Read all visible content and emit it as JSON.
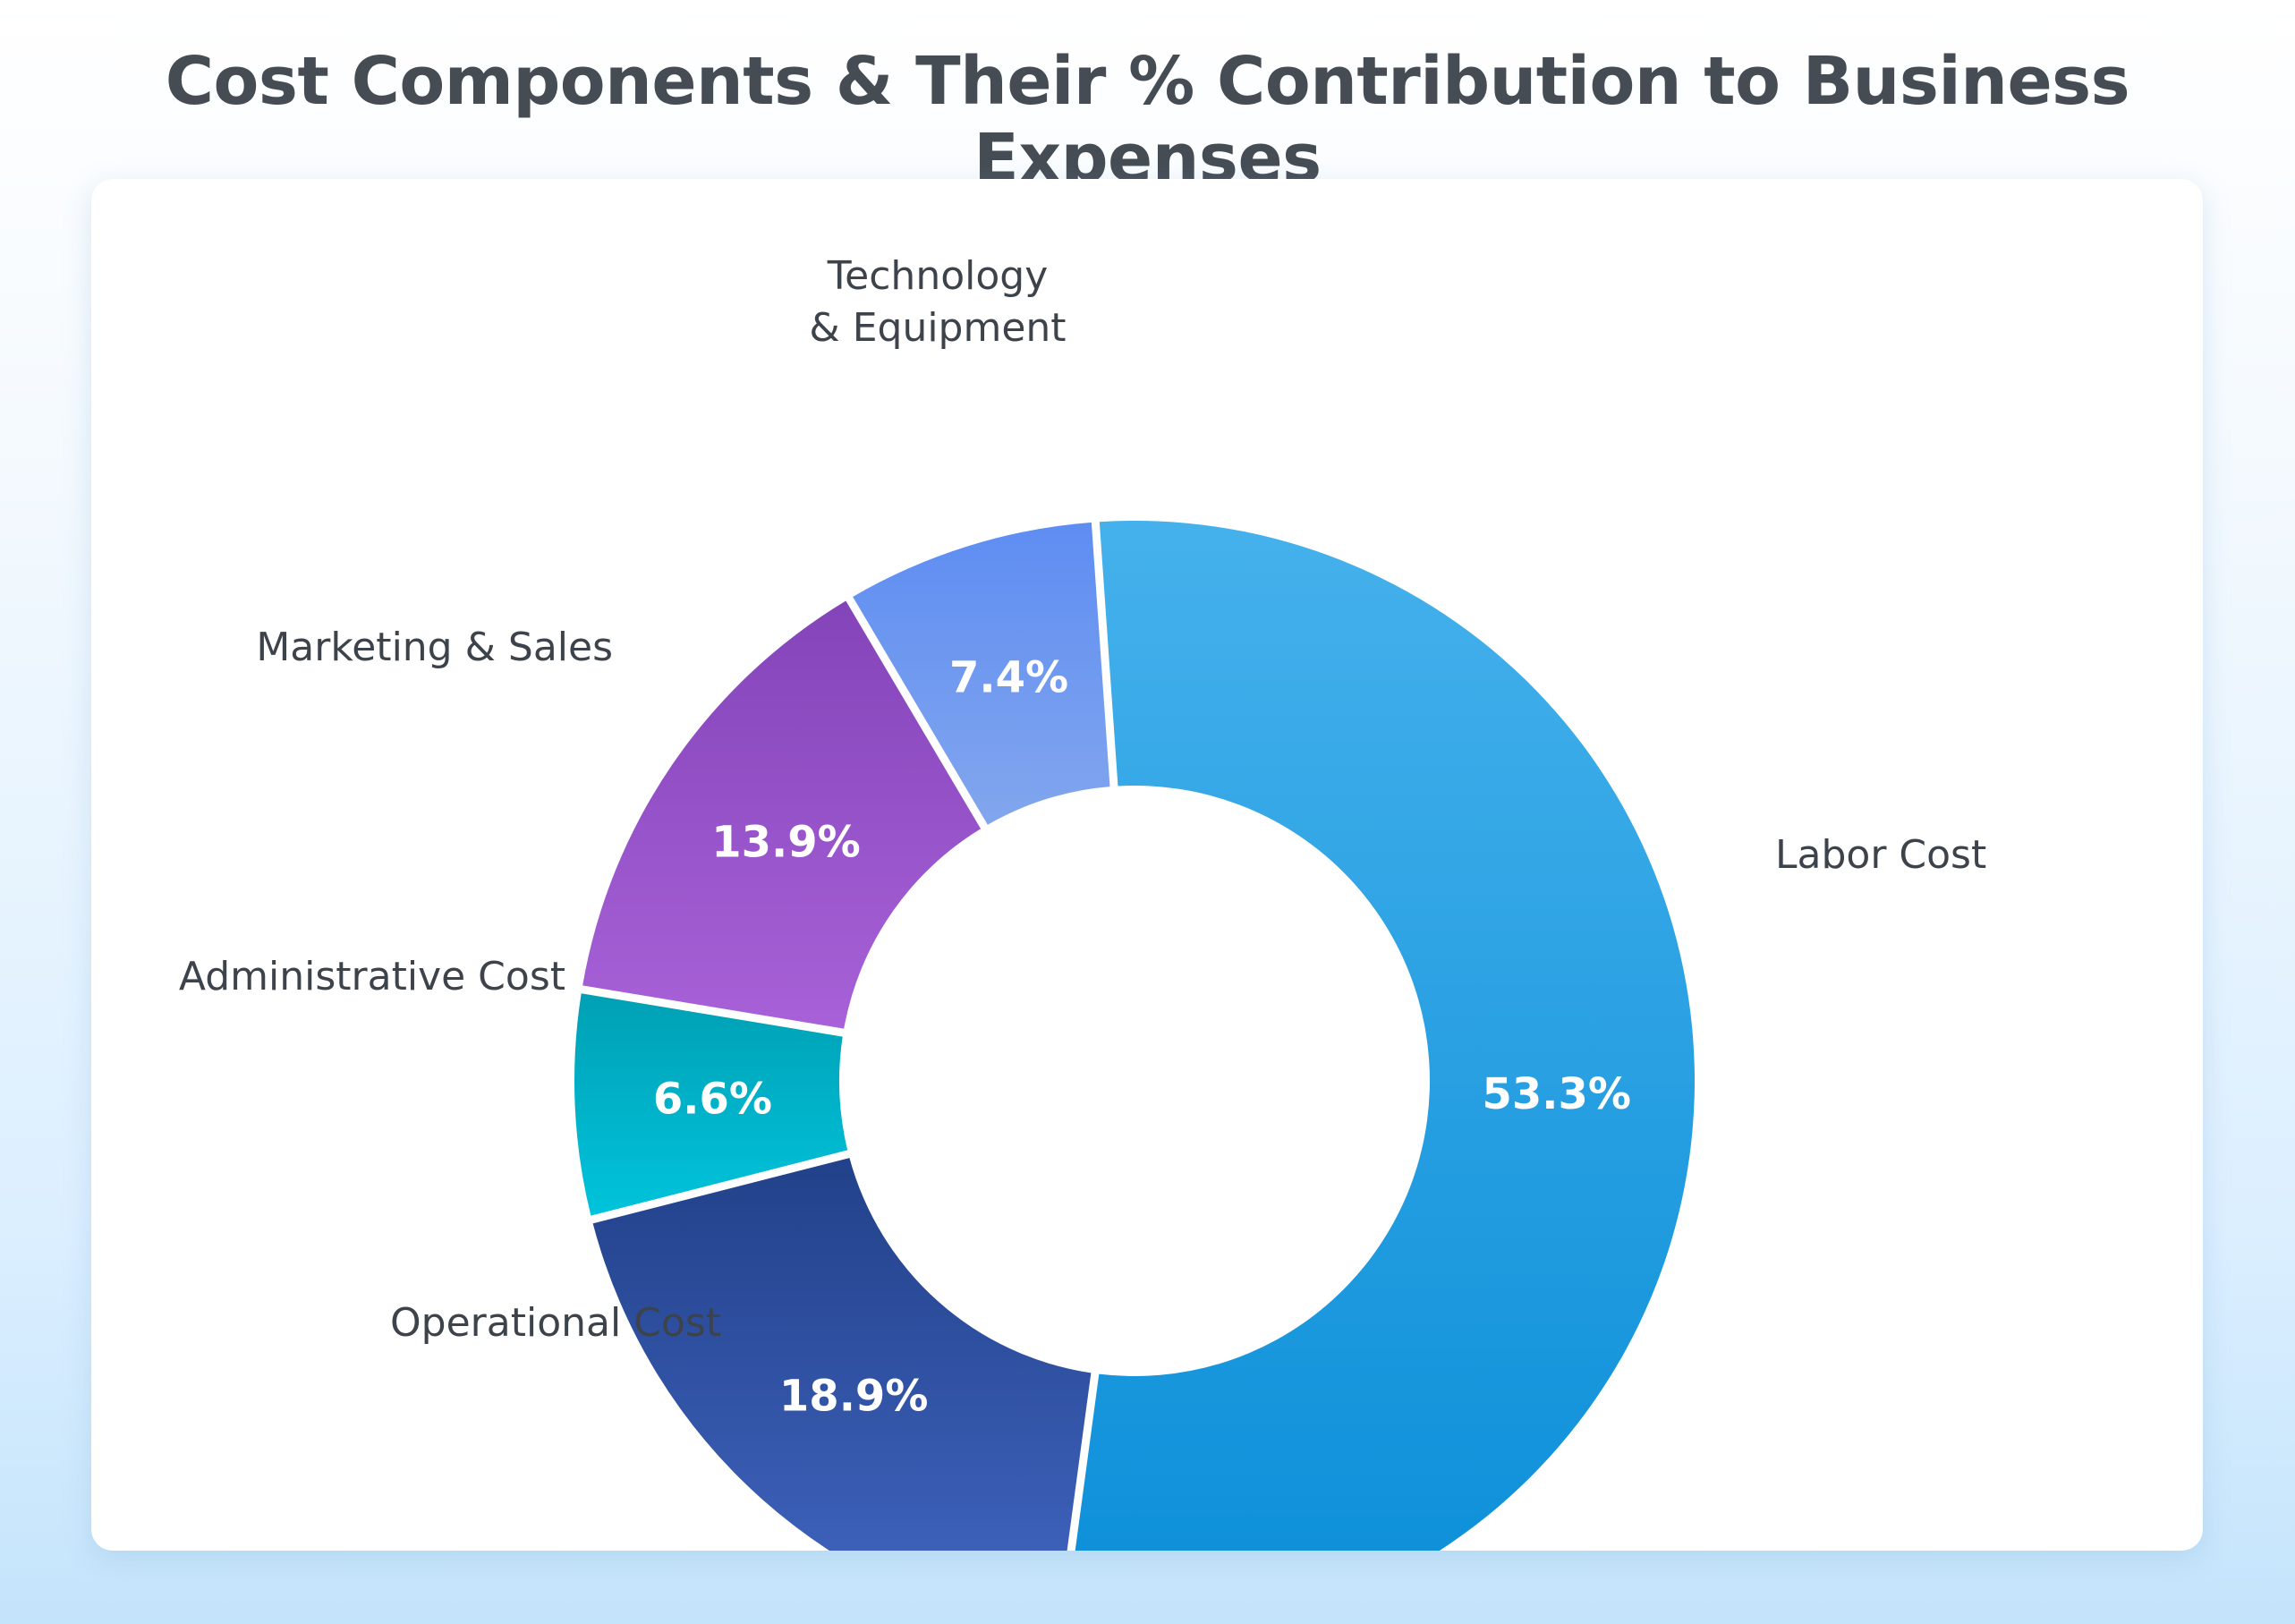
{
  "title": "Cost Components & Their % Contribution to Business Expenses",
  "chart_data": {
    "type": "donut",
    "title": "Cost Components & Their % Contribution to Business Expenses",
    "unit": "%",
    "slices": [
      {
        "label": "Labor Cost",
        "value": 53.3,
        "value_label": "53.3%",
        "color_top": "#45b1ec",
        "color_bottom": "#0a8ed8"
      },
      {
        "label": "Operational Cost",
        "value": 18.9,
        "value_label": "18.9%",
        "color_top": "#22418a",
        "color_bottom": "#4266c2"
      },
      {
        "label": "Administrative Cost",
        "value": 6.6,
        "value_label": "6.6%",
        "color_top": "#00a0b4",
        "color_bottom": "#00c3dc"
      },
      {
        "label": "Marketing & Sales",
        "value": 13.9,
        "value_label": "13.9%",
        "color_top": "#8444b9",
        "color_bottom": "#a861d8"
      },
      {
        "label": "Technology & Equipment",
        "label_lines": [
          "Technology",
          "& Equipment"
        ],
        "value": 7.4,
        "value_label": "7.4%",
        "color_top": "#5e8df2",
        "color_bottom": "#82a6ee"
      }
    ],
    "start_angle_deg": -4,
    "direction": "clockwise",
    "legend": "none",
    "labels": "category names outside slices, percentages inside slices"
  }
}
